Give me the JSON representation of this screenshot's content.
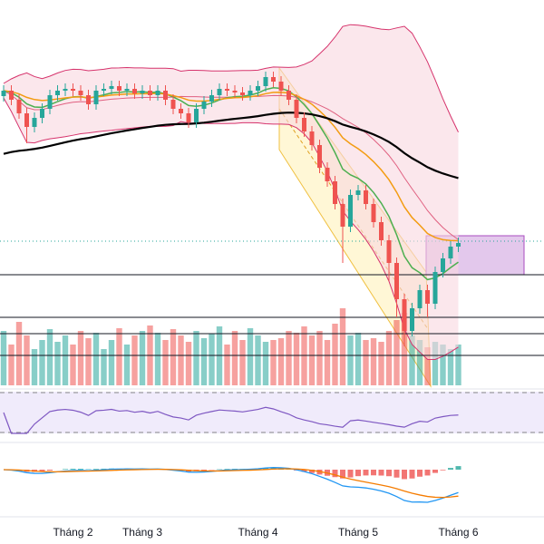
{
  "chart_data": {
    "type": "candlestick",
    "categories": [
      null,
      null,
      null,
      null,
      null,
      null,
      null,
      null,
      null,
      "Tháng 2",
      null,
      null,
      null,
      null,
      null,
      null,
      null,
      null,
      "Tháng 3",
      null,
      null,
      null,
      null,
      null,
      null,
      null,
      null,
      null,
      null,
      null,
      null,
      null,
      null,
      "Tháng 4",
      null,
      null,
      null,
      null,
      null,
      null,
      null,
      null,
      null,
      null,
      null,
      null,
      "Tháng 5",
      null,
      null,
      null,
      null,
      null,
      null,
      null,
      null,
      null,
      null,
      null,
      null,
      "Tháng 6"
    ],
    "open": [
      81,
      82.5,
      80,
      76.25,
      72.5,
      75,
      77.5,
      81.25,
      82.5,
      83,
      82.5,
      81.25,
      78.75,
      82.5,
      83,
      83.75,
      82.5,
      83,
      81.75,
      82.5,
      81.25,
      82.5,
      80,
      77.5,
      76.25,
      73.75,
      77.5,
      79.5,
      81.25,
      83,
      82.5,
      82,
      81.25,
      82.5,
      83.75,
      86.25,
      85,
      82.5,
      80,
      75,
      71.25,
      67.5,
      61.25,
      57.5,
      51.25,
      45,
      53.75,
      55,
      51.25,
      46.25,
      41.25,
      35,
      25,
      16.25,
      22.5,
      27.5,
      23.75,
      32.5,
      36.25,
      39.5
    ],
    "high": [
      84,
      84,
      81.5,
      77.75,
      76.5,
      79,
      82.75,
      84,
      84.5,
      84.5,
      84,
      82.75,
      84,
      84.5,
      85.25,
      85.25,
      84.5,
      84.5,
      84,
      84,
      84,
      84,
      81.5,
      79,
      77.75,
      79,
      81,
      82.75,
      84.5,
      84.5,
      84,
      83.5,
      84,
      85.25,
      87.75,
      87.75,
      86.5,
      84,
      81.5,
      76.5,
      72.75,
      69,
      62.75,
      59,
      52.75,
      55.25,
      56.5,
      56.5,
      52.75,
      47.75,
      42.75,
      36.5,
      26.5,
      24,
      29,
      29,
      34,
      37.75,
      41,
      42
    ],
    "low": [
      79.5,
      78.5,
      74.75,
      68,
      71,
      73.5,
      76,
      79.75,
      81,
      81,
      79.75,
      77.25,
      77.25,
      81,
      81.5,
      81,
      81,
      80.25,
      80.25,
      79.75,
      79.75,
      78.5,
      76,
      74.75,
      72.25,
      72.25,
      76,
      78,
      79.75,
      81,
      80.5,
      79.75,
      79.75,
      81,
      82.25,
      83.5,
      81,
      78.5,
      73.5,
      69.75,
      66,
      59.75,
      56,
      49.75,
      35,
      43.5,
      52.25,
      49.75,
      44.75,
      39.75,
      30,
      20,
      12,
      14.75,
      21,
      20,
      22.25,
      31,
      34.75,
      38
    ],
    "close": [
      82.5,
      80,
      76.25,
      72.5,
      75,
      77.5,
      81.25,
      82.5,
      83,
      82.5,
      81.25,
      78.75,
      82.5,
      83,
      83.75,
      82.5,
      83,
      81.75,
      82.5,
      81.25,
      82.5,
      80,
      77.5,
      76.25,
      73.75,
      77.5,
      79.5,
      81.25,
      83,
      82.5,
      82,
      81.25,
      82.5,
      83.75,
      86.25,
      85,
      82.5,
      80,
      75,
      71.25,
      67.5,
      61.25,
      57.5,
      51.25,
      45,
      53.75,
      55,
      51.25,
      46.25,
      41.25,
      35,
      25,
      16.25,
      22.5,
      27.5,
      23.75,
      32.5,
      36.25,
      39.5,
      40.5
    ],
    "volume": [
      60,
      45,
      70,
      55,
      40,
      50,
      62,
      48,
      55,
      45,
      60,
      52,
      58,
      40,
      50,
      63,
      45,
      55,
      60,
      66,
      58,
      50,
      62,
      55,
      48,
      60,
      52,
      57,
      65,
      45,
      60,
      50,
      63,
      55,
      48,
      50,
      52,
      60,
      58,
      65,
      55,
      60,
      50,
      68,
      85,
      55,
      58,
      50,
      52,
      48,
      60,
      72,
      80,
      55,
      50,
      42,
      48,
      45,
      40,
      45
    ],
    "ylim": [
      0,
      100
    ],
    "volume_lim": [
      0,
      100
    ],
    "up_color": "#26a69a",
    "down_color": "#ef5350"
  }
}
